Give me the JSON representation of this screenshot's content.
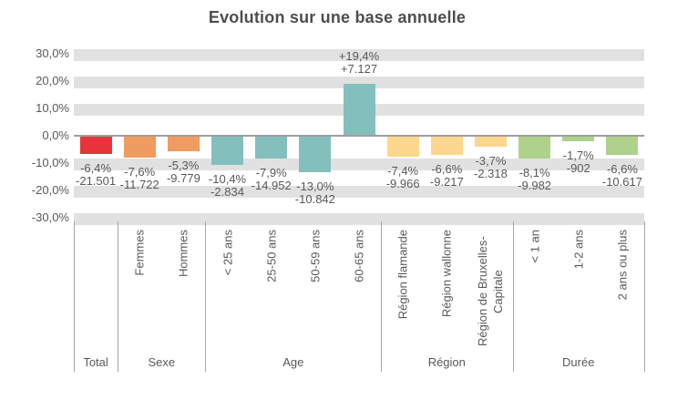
{
  "chart_data": {
    "type": "bar",
    "title": "Evolution sur une base annuelle",
    "xlabel": "",
    "ylabel": "",
    "ylim": [
      -30,
      30
    ],
    "grid": "horizontal-bands",
    "legend": "none",
    "value_label_format": "percent_and_absolute",
    "yticks": [
      {
        "value": 30,
        "label": "30,0%"
      },
      {
        "value": 20,
        "label": "20,0%"
      },
      {
        "value": 10,
        "label": "10,0%"
      },
      {
        "value": 0,
        "label": "0,0%"
      },
      {
        "value": -10,
        "label": "-10,0%"
      },
      {
        "value": -20,
        "label": "-20,0%"
      },
      {
        "value": -30,
        "label": "-30,0%"
      }
    ],
    "groups": [
      {
        "label": "Total",
        "color": "#e7333a",
        "bars": [
          {
            "category": "",
            "pct": -6.4,
            "pct_label": "-6,4%",
            "abs_label": "-21.501"
          }
        ]
      },
      {
        "label": "Sexe",
        "color": "#f09b5f",
        "bars": [
          {
            "category": "Femmes",
            "pct": -7.6,
            "pct_label": "-7,6%",
            "abs_label": "-11.722"
          },
          {
            "category": "Hommes",
            "pct": -5.3,
            "pct_label": "-5,3%",
            "abs_label": "-9.779"
          }
        ]
      },
      {
        "label": "Age",
        "color": "#83bfbc",
        "bars": [
          {
            "category": "< 25 ans",
            "pct": -10.4,
            "pct_label": "-10,4%",
            "abs_label": "-2.834"
          },
          {
            "category": "25-50 ans",
            "pct": -7.9,
            "pct_label": "-7,9%",
            "abs_label": "-14.952"
          },
          {
            "category": "50-59 ans",
            "pct": -13.0,
            "pct_label": "-13,0%",
            "abs_label": "-10.842"
          },
          {
            "category": "60-65 ans",
            "pct": 19.4,
            "pct_label": "+19,4%",
            "abs_label": "+7.127"
          }
        ]
      },
      {
        "label": "Région",
        "color": "#fdd78d",
        "bars": [
          {
            "category": "Région flamande",
            "pct": -7.4,
            "pct_label": "-7,4%",
            "abs_label": "-9.966"
          },
          {
            "category": "Région wallonne",
            "pct": -6.6,
            "pct_label": "-6,6%",
            "abs_label": "-9.217"
          },
          {
            "category": "Région de Bruxelles-Capitale",
            "pct": -3.7,
            "pct_label": "-3,7%",
            "abs_label": "-2.318",
            "wrap": true
          }
        ]
      },
      {
        "label": "Durée",
        "color": "#aed18c",
        "bars": [
          {
            "category": "< 1 an",
            "pct": -8.1,
            "pct_label": "-8,1%",
            "abs_label": "-9.982"
          },
          {
            "category": "1-2 ans",
            "pct": -1.7,
            "pct_label": "-1,7%",
            "abs_label": "-902"
          },
          {
            "category": "2 ans ou plus",
            "pct": -6.6,
            "pct_label": "-6,6%",
            "abs_label": "-10.617"
          }
        ]
      }
    ],
    "colors": {
      "grid_band": "#e1e1e1",
      "axis_line": "#9f9f9f",
      "separator_line": "#a6a6a6",
      "text": "#595959",
      "title": "#4d4d4d",
      "background": "#ffffff"
    }
  }
}
